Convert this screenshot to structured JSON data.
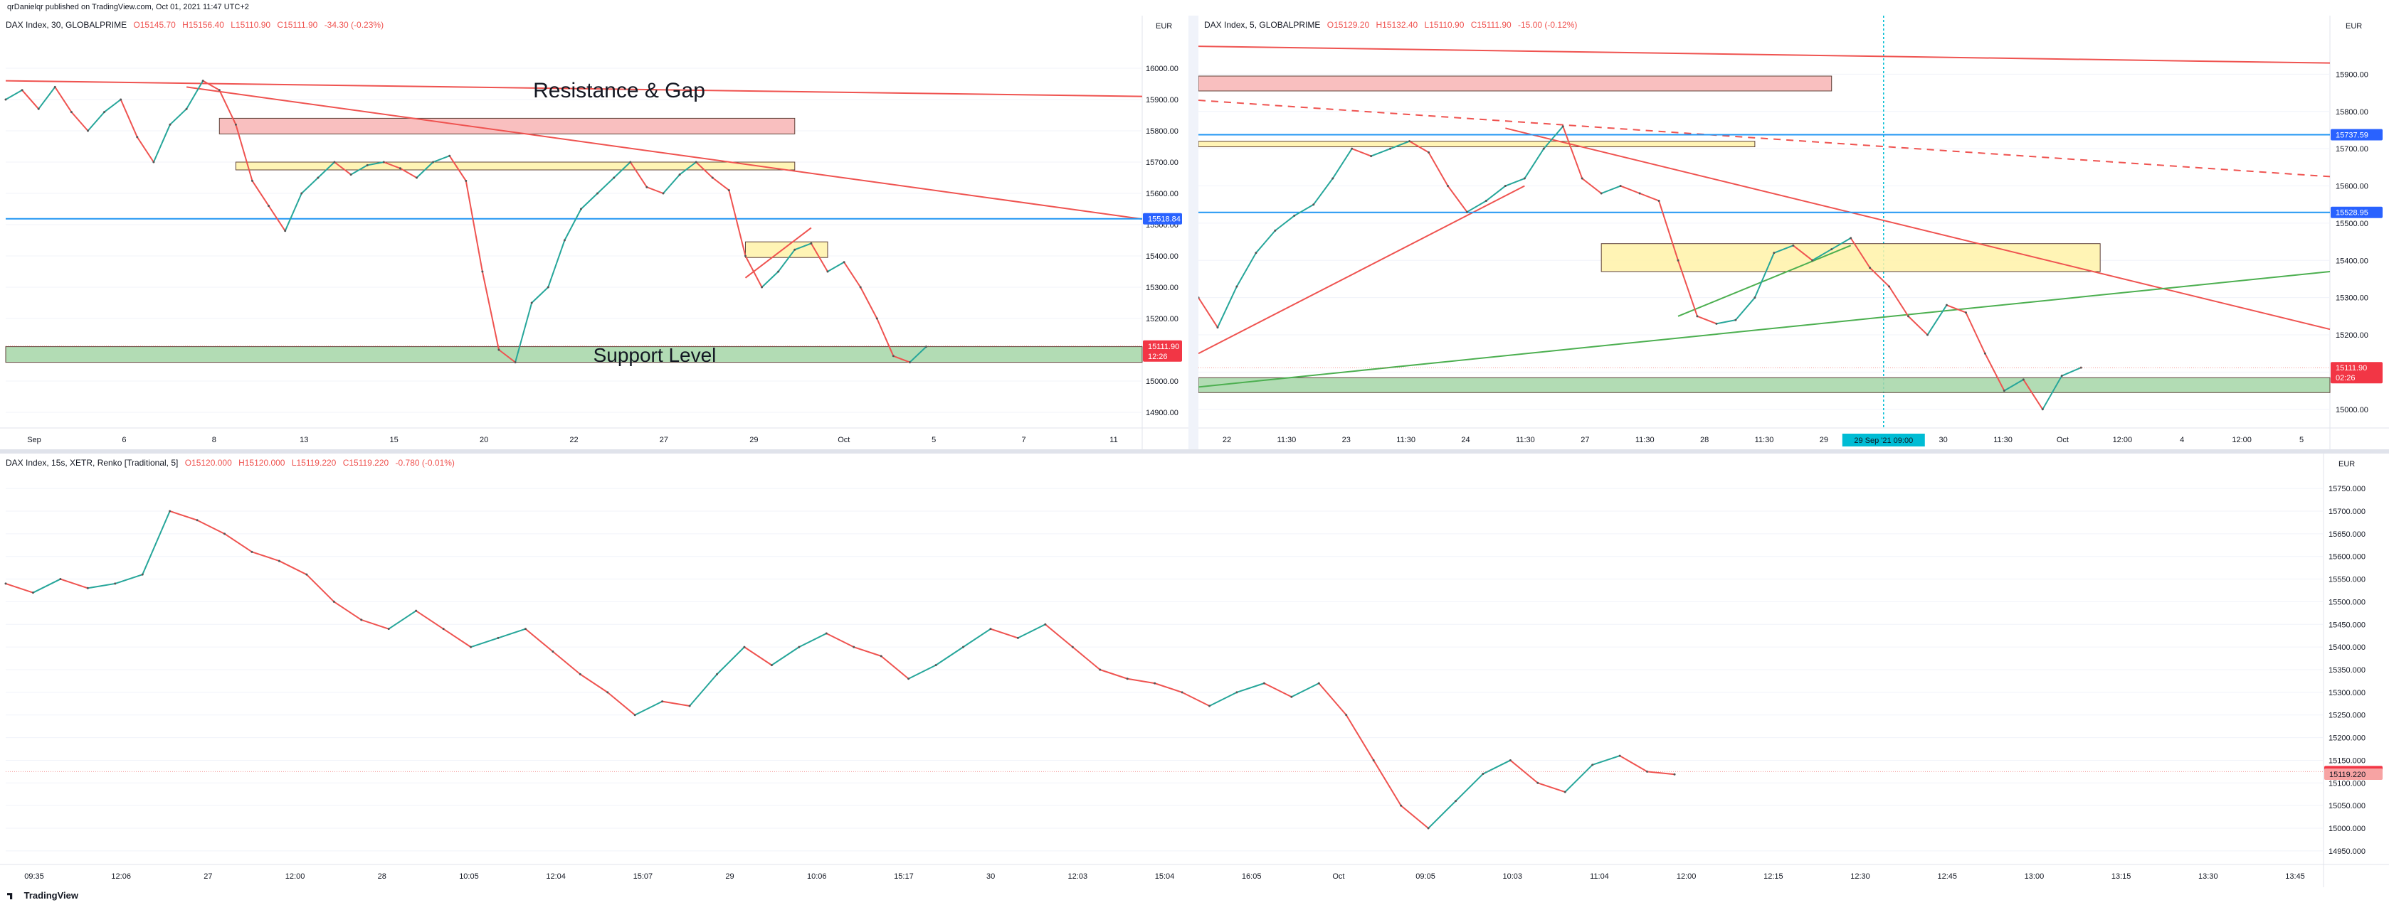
{
  "header": {
    "published": "qrDanielqr published on TradingView.com, Oct 01, 2021 11:47 UTC+2"
  },
  "footer": {
    "brand": "TradingView",
    "logo_icon": "tradingview-logo-icon"
  },
  "colors": {
    "up": "#26a69a",
    "down": "#ef5350",
    "blue_line": "#2196f3",
    "resistance_fill": "#f8b4b4",
    "zone_fill": "#fff2a8",
    "support_fill": "#a5d6a7",
    "price_tag": "#f23645",
    "blue_tag": "#2962ff",
    "grid": "#f0f3fa"
  },
  "chart_data": [
    {
      "type": "line",
      "panel": "top-left",
      "symbol_label": "DAX Index, 30, GLOBALPRIME",
      "ohlc": [
        "O15145.70",
        "H15156.40",
        "L15110.90",
        "C15111.90",
        "-34.30 (-0.23%)"
      ],
      "currency": "EUR",
      "ylim": [
        14850,
        16100
      ],
      "y_ticks": [
        "16000.00",
        "15900.00",
        "15800.00",
        "15700.00",
        "15600.00",
        "15500.00",
        "15400.00",
        "15300.00",
        "15200.00",
        "15100.00",
        "15000.00",
        "14900.00"
      ],
      "y_tick_values": [
        16000,
        15900,
        15800,
        15700,
        15600,
        15500,
        15400,
        15300,
        15200,
        15100,
        15000,
        14900
      ],
      "x_ticks": [
        "Sep",
        "6",
        "8",
        "13",
        "15",
        "20",
        "22",
        "27",
        "29",
        "Oct",
        "5",
        "7",
        "11"
      ],
      "series": [
        {
          "values": [
            15900,
            15930,
            15870,
            15940,
            15860,
            15800,
            15860,
            15900,
            15780,
            15700,
            15820,
            15870,
            15960,
            15930,
            15820,
            15640,
            15560,
            15480,
            15600,
            15650,
            15700,
            15660,
            15690,
            15700,
            15680,
            15650,
            15700,
            15720,
            15640,
            15350,
            15100,
            15060,
            15250,
            15300,
            15450,
            15550,
            15600,
            15650,
            15700,
            15620,
            15600,
            15660,
            15700,
            15650,
            15610,
            15400,
            15300,
            15350,
            15420,
            15440,
            15350,
            15380,
            15300,
            15200,
            15080,
            15060,
            15110
          ]
        }
      ],
      "price_labels": [
        {
          "value": "15518.84",
          "kind": "blue_line",
          "y": 15518.84
        },
        {
          "value": "15111.90",
          "kind": "last_price",
          "y": 15111.9,
          "countdown": "12:26"
        }
      ],
      "annotations": [
        {
          "text": "Resistance & Gap",
          "kind": "label"
        },
        {
          "text": "Support Level",
          "kind": "label"
        }
      ],
      "zones": [
        {
          "name": "resistance-gap",
          "y_from": 15790,
          "y_to": 15840,
          "x_from_index": 13,
          "x_to_index": 48
        },
        {
          "name": "range-top",
          "y_from": 15675,
          "y_to": 15700,
          "x_from_index": 14,
          "x_to_index": 48
        },
        {
          "name": "consolidation",
          "y_from": 15395,
          "y_to": 15445,
          "x_from_index": 45,
          "x_to_index": 50
        },
        {
          "name": "support",
          "y_from": 15060,
          "y_to": 15110,
          "x_from_index": 0,
          "x_to_index": 62
        }
      ],
      "trendlines": [
        {
          "kind": "red",
          "from": [
            0,
            15960
          ],
          "to": [
            62,
            15910
          ]
        },
        {
          "kind": "red",
          "from": [
            11,
            15940
          ],
          "to": [
            62,
            15518
          ]
        },
        {
          "kind": "blue",
          "from": [
            0,
            15518.84
          ],
          "to": [
            62,
            15518.84
          ]
        },
        {
          "kind": "red",
          "from": [
            45,
            15330
          ],
          "to": [
            49,
            15490
          ]
        }
      ]
    },
    {
      "type": "line",
      "panel": "top-right",
      "symbol_label": "DAX Index, 5, GLOBALPRIME",
      "ohlc": [
        "O15129.20",
        "H15132.40",
        "L15110.90",
        "C15111.90",
        "-15.00 (-0.12%)"
      ],
      "currency": "EUR",
      "ylim": [
        14950,
        16000
      ],
      "y_ticks": [
        "15900.00",
        "15800.00",
        "15700.00",
        "15600.00",
        "15500.00",
        "15400.00",
        "15300.00",
        "15200.00",
        "15100.00",
        "15000.00"
      ],
      "y_tick_values": [
        15900,
        15800,
        15700,
        15600,
        15500,
        15400,
        15300,
        15200,
        15100,
        15000
      ],
      "x_ticks": [
        "22",
        "11:30",
        "23",
        "11:30",
        "24",
        "11:30",
        "27",
        "11:30",
        "28",
        "11:30",
        "29",
        "29 Sep '21   09:00",
        "30",
        "11:30",
        "Oct",
        "12:00",
        "4",
        "12:00",
        "5"
      ],
      "crosshair_x_label": "29 Sep '21   09:00",
      "series": [
        {
          "values": [
            15300,
            15220,
            15330,
            15420,
            15480,
            15520,
            15550,
            15620,
            15700,
            15680,
            15700,
            15720,
            15690,
            15600,
            15530,
            15560,
            15600,
            15620,
            15700,
            15760,
            15620,
            15580,
            15600,
            15580,
            15560,
            15400,
            15250,
            15230,
            15240,
            15300,
            15420,
            15440,
            15400,
            15430,
            15460,
            15380,
            15330,
            15250,
            15200,
            15280,
            15260,
            15150,
            15050,
            15080,
            15000,
            15090,
            15112
          ]
        }
      ],
      "price_labels": [
        {
          "value": "15737.59",
          "kind": "blue_line",
          "y": 15737.59
        },
        {
          "value": "15528.95",
          "kind": "blue_line",
          "y": 15528.95
        },
        {
          "value": "15111.90",
          "kind": "last_price",
          "y": 15111.9,
          "countdown": "02:26"
        }
      ],
      "zones": [
        {
          "name": "resistance-gap",
          "y_from": 15855,
          "y_to": 15895,
          "x_from_index": 0,
          "x_to_index": 33
        },
        {
          "name": "range-top",
          "y_from": 15705,
          "y_to": 15720,
          "x_from_index": 0,
          "x_to_index": 29
        },
        {
          "name": "consolidation",
          "y_from": 15370,
          "y_to": 15445,
          "x_from_index": 21,
          "x_to_index": 47
        },
        {
          "name": "support",
          "y_from": 15045,
          "y_to": 15085,
          "x_from_index": 0,
          "x_to_index": 47
        }
      ],
      "trendlines": [
        {
          "kind": "red",
          "from": [
            0,
            15975
          ],
          "to": [
            47,
            15930
          ]
        },
        {
          "kind": "red",
          "from": [
            16,
            15755
          ],
          "to": [
            47,
            15215
          ]
        },
        {
          "kind": "red-dashed",
          "from": [
            0,
            15830
          ],
          "to": [
            47,
            15625
          ]
        },
        {
          "kind": "red",
          "from": [
            0,
            15150
          ],
          "to": [
            17,
            15600
          ]
        },
        {
          "kind": "green",
          "from": [
            0,
            15060
          ],
          "to": [
            47,
            15370
          ]
        },
        {
          "kind": "green",
          "from": [
            25,
            15250
          ],
          "to": [
            34,
            15440
          ]
        },
        {
          "kind": "blue",
          "from": [
            0,
            15737.59
          ],
          "to": [
            47,
            15737.59
          ]
        },
        {
          "kind": "blue",
          "from": [
            0,
            15528.95
          ],
          "to": [
            47,
            15528.95
          ]
        }
      ]
    },
    {
      "type": "line",
      "panel": "bottom",
      "symbol_label": "DAX Index, 15s, XETR, Renko [Traditional, 5]",
      "ohlc": [
        "O15120.000",
        "H15120.000",
        "L15119.220",
        "C15119.220",
        "-0.780 (-0.01%)"
      ],
      "currency": "EUR",
      "ylim": [
        14920,
        15780
      ],
      "y_ticks": [
        "15750.000",
        "15700.000",
        "15650.000",
        "15600.000",
        "15550.000",
        "15500.000",
        "15450.000",
        "15400.000",
        "15350.000",
        "15300.000",
        "15250.000",
        "15200.000",
        "15150.000",
        "15100.000",
        "15050.000",
        "15000.000",
        "14950.000"
      ],
      "y_tick_values": [
        15750,
        15700,
        15650,
        15600,
        15550,
        15500,
        15450,
        15400,
        15350,
        15300,
        15250,
        15200,
        15150,
        15100,
        15050,
        15000,
        14950
      ],
      "x_ticks": [
        "09:35",
        "12:06",
        "27",
        "12:00",
        "28",
        "10:05",
        "12:04",
        "15:07",
        "29",
        "10:06",
        "15:17",
        "30",
        "12:03",
        "15:04",
        "16:05",
        "Oct",
        "09:05",
        "10:03",
        "11:04",
        "12:00",
        "12:15",
        "12:30",
        "12:45",
        "13:00",
        "13:15",
        "13:30",
        "13:45"
      ],
      "series": [
        {
          "values": [
            15540,
            15520,
            15550,
            15530,
            15540,
            15560,
            15700,
            15680,
            15650,
            15610,
            15590,
            15560,
            15500,
            15460,
            15440,
            15480,
            15440,
            15400,
            15420,
            15440,
            15390,
            15340,
            15300,
            15250,
            15280,
            15270,
            15340,
            15400,
            15360,
            15400,
            15430,
            15400,
            15380,
            15330,
            15360,
            15400,
            15440,
            15420,
            15450,
            15400,
            15350,
            15330,
            15320,
            15300,
            15270,
            15300,
            15320,
            15290,
            15320,
            15250,
            15150,
            15050,
            15000,
            15060,
            15120,
            15150,
            15100,
            15080,
            15140,
            15160,
            15125,
            15119
          ]
        }
      ],
      "price_labels": [
        {
          "value": "15125.000",
          "kind": "last_price",
          "y": 15125
        },
        {
          "value": "15119.220",
          "kind": "current",
          "y": 15119.22
        }
      ]
    }
  ]
}
